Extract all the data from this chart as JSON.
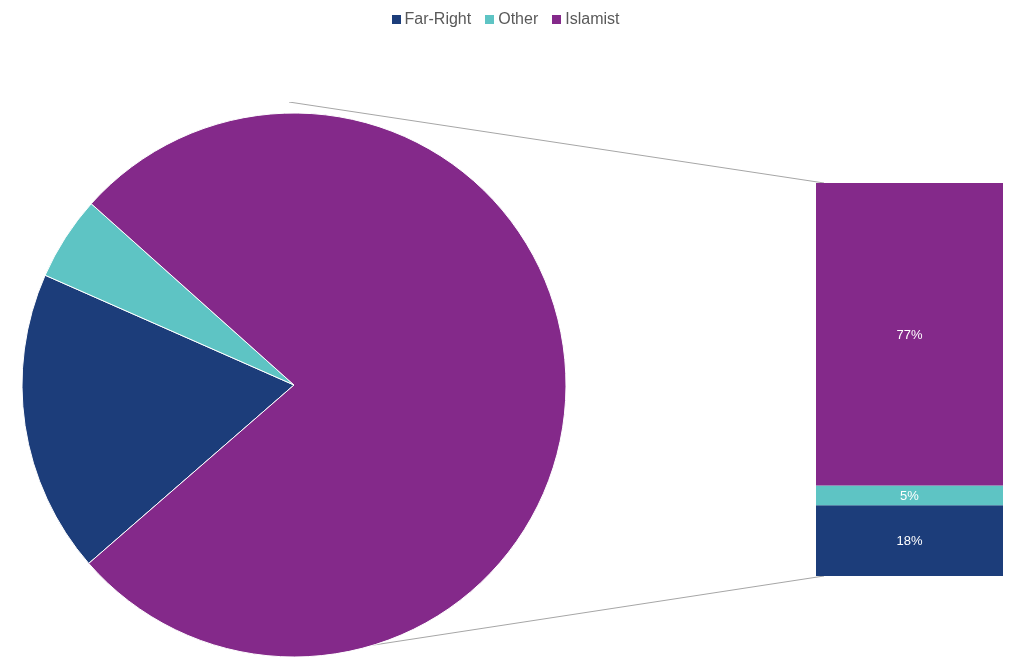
{
  "chart_data": [
    {
      "type": "pie",
      "categories": [
        "Far-Right",
        "Other",
        "Islamist"
      ],
      "values": [
        18,
        5,
        77
      ],
      "colors": [
        "#1c3d7a",
        "#5ec4c4",
        "#84298a"
      ],
      "legend": "top"
    },
    {
      "type": "bar",
      "stacked": true,
      "categories": [
        null
      ],
      "series": [
        {
          "color": "#1c3d7a",
          "values": [
            18
          ],
          "value_labels": [
            "18%"
          ]
        },
        {
          "color": "#5ec4c4",
          "values": [
            5
          ],
          "value_labels": [
            "5%"
          ]
        },
        {
          "color": "#84298a",
          "values": [
            77
          ],
          "value_labels": [
            "77%"
          ]
        }
      ]
    }
  ]
}
